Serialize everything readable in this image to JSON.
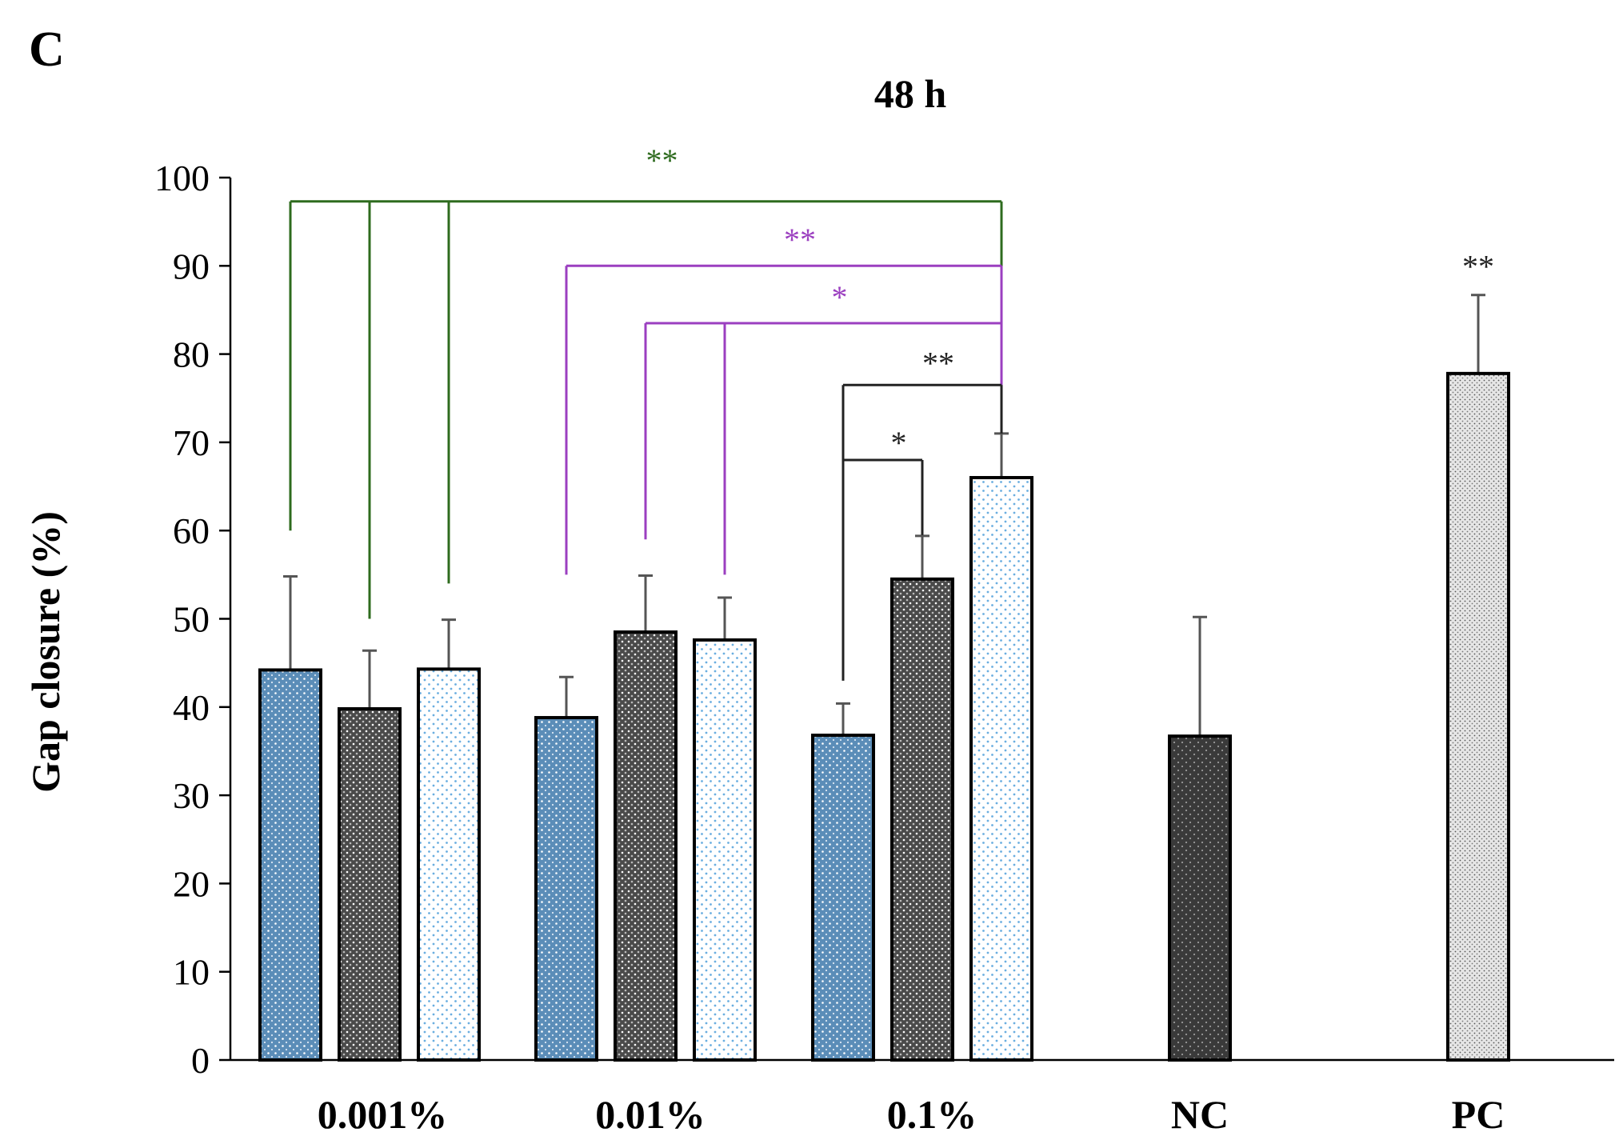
{
  "chart_data": {
    "type": "bar",
    "panel_label": "C",
    "title": "48 h",
    "xlabel": "",
    "ylabel": "Gap closure (%)",
    "ylim": [
      0,
      100
    ],
    "yticks": [
      0,
      10,
      20,
      30,
      40,
      50,
      60,
      70,
      80,
      90,
      100
    ],
    "categories": [
      "0.001%",
      "0.01%",
      "0.1%",
      "NC",
      "PC"
    ],
    "bars": [
      {
        "group": "0.001%",
        "series": 1,
        "value": 44.2,
        "error": 10.6
      },
      {
        "group": "0.001%",
        "series": 2,
        "value": 39.8,
        "error": 6.6
      },
      {
        "group": "0.001%",
        "series": 3,
        "value": 44.3,
        "error": 5.6
      },
      {
        "group": "0.01%",
        "series": 1,
        "value": 38.8,
        "error": 4.6
      },
      {
        "group": "0.01%",
        "series": 2,
        "value": 48.5,
        "error": 6.4
      },
      {
        "group": "0.01%",
        "series": 3,
        "value": 47.6,
        "error": 4.8
      },
      {
        "group": "0.1%",
        "series": 1,
        "value": 36.8,
        "error": 3.6
      },
      {
        "group": "0.1%",
        "series": 2,
        "value": 54.5,
        "error": 4.9
      },
      {
        "group": "0.1%",
        "series": 3,
        "value": 66.0,
        "error": 5.0
      },
      {
        "group": "NC",
        "series": 0,
        "value": 36.7,
        "error": 13.5
      },
      {
        "group": "PC",
        "series": 0,
        "value": 77.8,
        "error": 8.9
      }
    ],
    "significance": [
      {
        "label": "**",
        "color": "#2e6b1e",
        "line_y": 97.3,
        "text_y": 102.0,
        "target": 8,
        "from": [
          0,
          1,
          2
        ],
        "drop_to": [
          60,
          50,
          54
        ]
      },
      {
        "label": "**",
        "color": "#9b3fc0",
        "line_y": 90.0,
        "text_y": 93.0,
        "target": 8,
        "from": [
          3
        ],
        "drop_to": [
          55
        ]
      },
      {
        "label": "*",
        "color": "#9b3fc0",
        "line_y": 83.5,
        "text_y": 86.5,
        "target": 8,
        "from": [
          4,
          5
        ],
        "drop_to": [
          59,
          55
        ]
      },
      {
        "label": "**",
        "color": "#222222",
        "line_y": 76.5,
        "text_y": 79.0,
        "target": 8,
        "from": [
          6
        ],
        "drop_to": [
          43
        ]
      },
      {
        "label": "*",
        "color": "#222222",
        "line_y": 68.0,
        "text_y": 70.0,
        "target": 7,
        "from": [
          6
        ],
        "drop_to": [
          43
        ]
      }
    ],
    "annotations": [
      {
        "label": "**",
        "bar": 10,
        "value_y": 90.0,
        "color": "#222222"
      }
    ],
    "colors": {
      "series1": "#5b8db8",
      "series2": "#4a4a4a",
      "series3": "#ffffff",
      "series3_dots": "#6aaee0",
      "nc": "#3a3a3a",
      "pc": "#e2e2e2",
      "error": "#555555"
    }
  }
}
